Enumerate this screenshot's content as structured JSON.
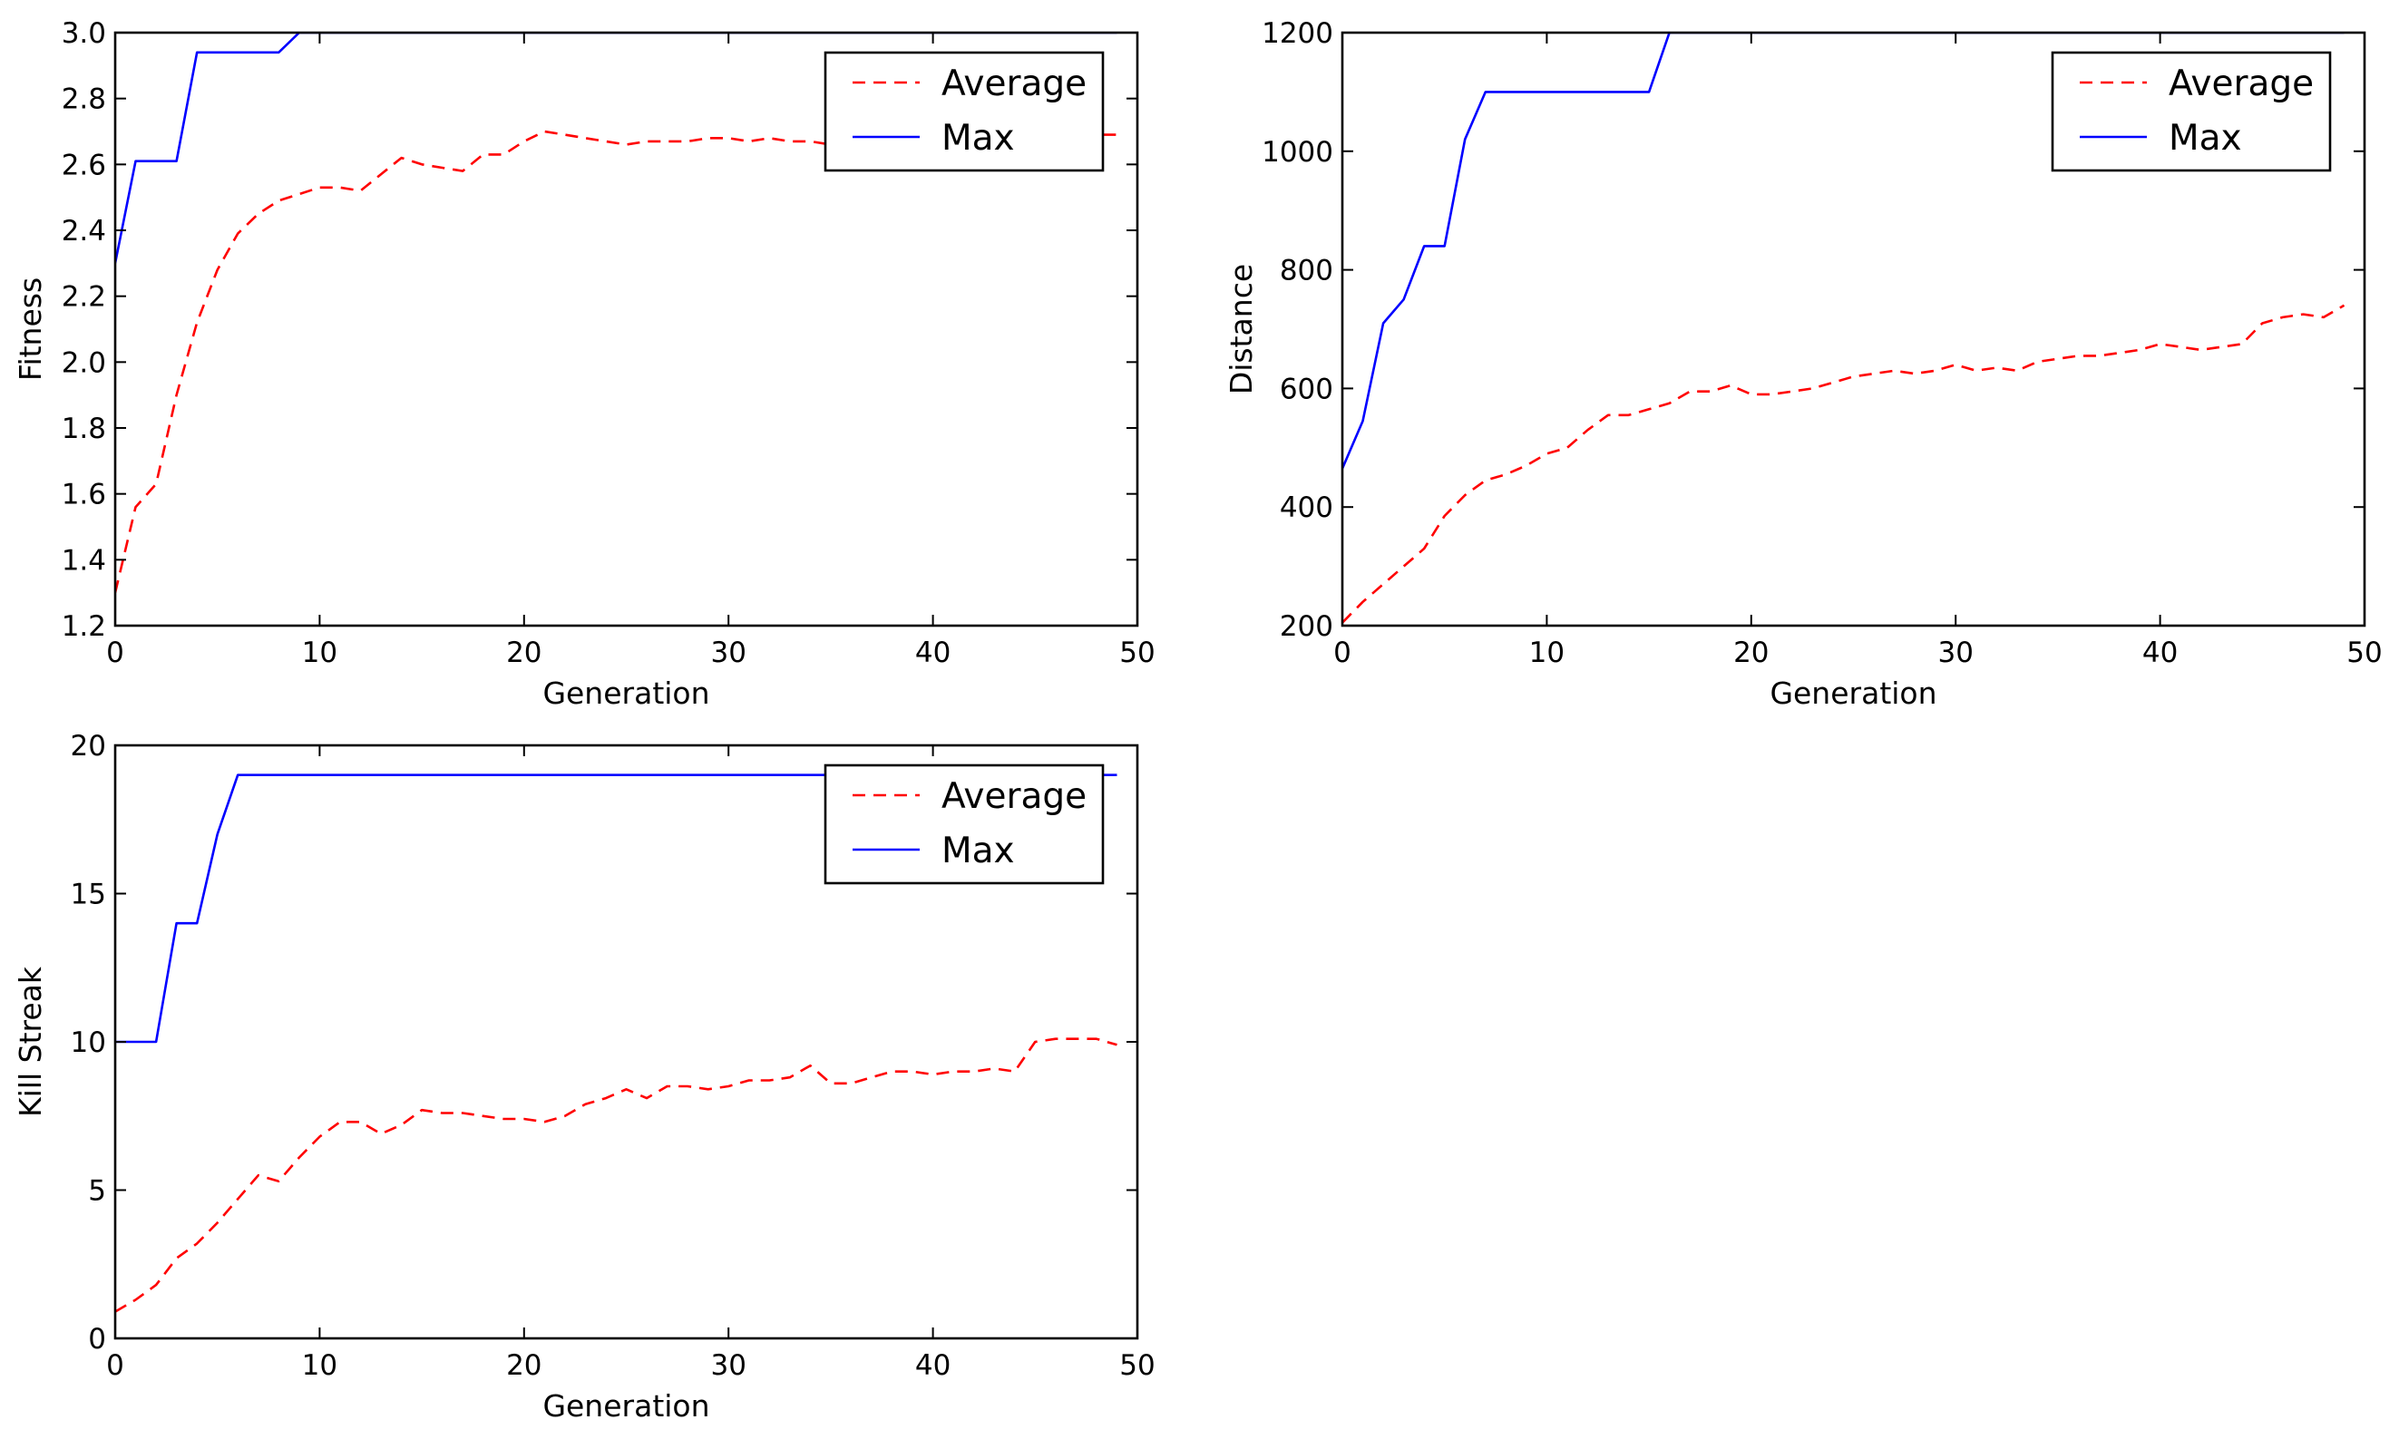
{
  "chart_data": [
    {
      "type": "line",
      "id": "fitness",
      "xlabel": "Generation",
      "ylabel": "Fitness",
      "xlim": [
        0,
        50
      ],
      "ylim": [
        1.2,
        3.0
      ],
      "xticks": [
        0,
        10,
        20,
        30,
        40,
        50
      ],
      "yticks": [
        1.2,
        1.4,
        1.6,
        1.8,
        2.0,
        2.2,
        2.4,
        2.6,
        2.8,
        3.0
      ],
      "ytick_decimals": 1,
      "legend_position": "top-right",
      "grid": false,
      "x": [
        0,
        1,
        2,
        3,
        4,
        5,
        6,
        7,
        8,
        9,
        10,
        11,
        12,
        13,
        14,
        15,
        16,
        17,
        18,
        19,
        20,
        21,
        22,
        23,
        24,
        25,
        26,
        27,
        28,
        29,
        30,
        31,
        32,
        33,
        34,
        35,
        36,
        37,
        38,
        39,
        40,
        41,
        42,
        43,
        44,
        45,
        46,
        47,
        48,
        49
      ],
      "series": [
        {
          "name": "Average",
          "color": "#ff0000",
          "dash": "dashed",
          "values": [
            1.3,
            1.56,
            1.63,
            1.9,
            2.12,
            2.28,
            2.39,
            2.45,
            2.49,
            2.51,
            2.53,
            2.53,
            2.52,
            2.57,
            2.62,
            2.6,
            2.59,
            2.58,
            2.63,
            2.63,
            2.67,
            2.7,
            2.69,
            2.68,
            2.67,
            2.66,
            2.67,
            2.67,
            2.67,
            2.68,
            2.68,
            2.67,
            2.68,
            2.67,
            2.67,
            2.66,
            2.69,
            2.69,
            2.69,
            2.69,
            2.69,
            2.69,
            2.69,
            2.69,
            2.69,
            2.69,
            2.69,
            2.69,
            2.69,
            2.69
          ]
        },
        {
          "name": "Max",
          "color": "#0000ff",
          "dash": "solid",
          "values": [
            2.3,
            2.61,
            2.61,
            2.61,
            2.94,
            2.94,
            2.94,
            2.94,
            2.94,
            3.0,
            3.0,
            3.0,
            3.0,
            3.0,
            3.0,
            3.0,
            3.0,
            3.0,
            3.0,
            3.0,
            3.0,
            3.0,
            3.0,
            3.0,
            3.0,
            3.0,
            3.0,
            3.0,
            3.0,
            3.0,
            3.0,
            3.0,
            3.0,
            3.0,
            3.0,
            3.0,
            3.0,
            3.0,
            3.0,
            3.0,
            3.0,
            3.0,
            3.0,
            3.0,
            3.0,
            3.0,
            3.0,
            3.0,
            3.0,
            3.0
          ]
        }
      ]
    },
    {
      "type": "line",
      "id": "distance",
      "xlabel": "Generation",
      "ylabel": "Distance",
      "xlim": [
        0,
        50
      ],
      "ylim": [
        200,
        1200
      ],
      "xticks": [
        0,
        10,
        20,
        30,
        40,
        50
      ],
      "yticks": [
        200,
        400,
        600,
        800,
        1000,
        1200
      ],
      "ytick_decimals": 0,
      "legend_position": "top-right",
      "grid": false,
      "x": [
        0,
        1,
        2,
        3,
        4,
        5,
        6,
        7,
        8,
        9,
        10,
        11,
        12,
        13,
        14,
        15,
        16,
        17,
        18,
        19,
        20,
        21,
        22,
        23,
        24,
        25,
        26,
        27,
        28,
        29,
        30,
        31,
        32,
        33,
        34,
        35,
        36,
        37,
        38,
        39,
        40,
        41,
        42,
        43,
        44,
        45,
        46,
        47,
        48,
        49
      ],
      "series": [
        {
          "name": "Average",
          "color": "#ff0000",
          "dash": "dashed",
          "values": [
            205,
            240,
            270,
            300,
            330,
            385,
            420,
            445,
            455,
            470,
            490,
            500,
            530,
            555,
            555,
            565,
            575,
            595,
            595,
            605,
            590,
            590,
            595,
            600,
            610,
            620,
            625,
            630,
            625,
            630,
            640,
            630,
            635,
            630,
            645,
            650,
            655,
            655,
            660,
            665,
            675,
            670,
            665,
            670,
            675,
            710,
            720,
            725,
            720,
            740
          ]
        },
        {
          "name": "Max",
          "color": "#0000ff",
          "dash": "solid",
          "values": [
            465,
            545,
            710,
            750,
            840,
            840,
            1020,
            1100,
            1100,
            1100,
            1100,
            1100,
            1100,
            1100,
            1100,
            1100,
            1200,
            1200,
            1200,
            1200,
            1200,
            1200,
            1200,
            1200,
            1200,
            1200,
            1200,
            1200,
            1200,
            1200,
            1200,
            1200,
            1200,
            1200,
            1200,
            1200,
            1200,
            1200,
            1200,
            1200,
            1200,
            1200,
            1200,
            1200,
            1200,
            1200,
            1200,
            1200,
            1200,
            1200
          ]
        }
      ]
    },
    {
      "type": "line",
      "id": "killstreak",
      "xlabel": "Generation",
      "ylabel": "Kill Streak",
      "xlim": [
        0,
        50
      ],
      "ylim": [
        0,
        20
      ],
      "xticks": [
        0,
        10,
        20,
        30,
        40,
        50
      ],
      "yticks": [
        0,
        5,
        10,
        15,
        20
      ],
      "ytick_decimals": 0,
      "legend_position": "top-right",
      "grid": false,
      "x": [
        0,
        1,
        2,
        3,
        4,
        5,
        6,
        7,
        8,
        9,
        10,
        11,
        12,
        13,
        14,
        15,
        16,
        17,
        18,
        19,
        20,
        21,
        22,
        23,
        24,
        25,
        26,
        27,
        28,
        29,
        30,
        31,
        32,
        33,
        34,
        35,
        36,
        37,
        38,
        39,
        40,
        41,
        42,
        43,
        44,
        45,
        46,
        47,
        48,
        49
      ],
      "series": [
        {
          "name": "Average",
          "color": "#ff0000",
          "dash": "dashed",
          "values": [
            0.9,
            1.3,
            1.8,
            2.7,
            3.2,
            3.9,
            4.7,
            5.5,
            5.3,
            6.1,
            6.8,
            7.3,
            7.3,
            6.9,
            7.2,
            7.7,
            7.6,
            7.6,
            7.5,
            7.4,
            7.4,
            7.3,
            7.5,
            7.9,
            8.1,
            8.4,
            8.1,
            8.5,
            8.5,
            8.4,
            8.5,
            8.7,
            8.7,
            8.8,
            9.2,
            8.6,
            8.6,
            8.8,
            9.0,
            9.0,
            8.9,
            9.0,
            9.0,
            9.1,
            9.0,
            10.0,
            10.1,
            10.1,
            10.1,
            9.9
          ]
        },
        {
          "name": "Max",
          "color": "#0000ff",
          "dash": "solid",
          "values": [
            10,
            10,
            10,
            14,
            14,
            17,
            19,
            19,
            19,
            19,
            19,
            19,
            19,
            19,
            19,
            19,
            19,
            19,
            19,
            19,
            19,
            19,
            19,
            19,
            19,
            19,
            19,
            19,
            19,
            19,
            19,
            19,
            19,
            19,
            19,
            19,
            19,
            19,
            19,
            19,
            19,
            19,
            19,
            19,
            19,
            19,
            19,
            19,
            19,
            19
          ]
        }
      ]
    }
  ]
}
